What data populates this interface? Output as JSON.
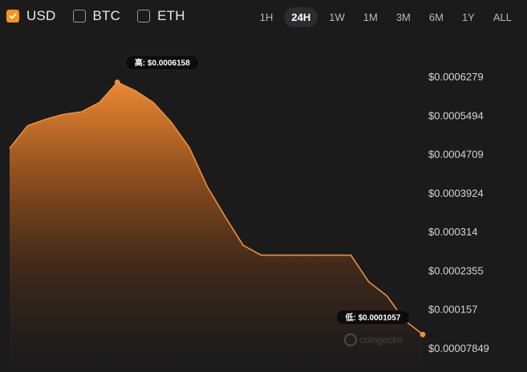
{
  "currencies": [
    {
      "label": "USD",
      "checked": true
    },
    {
      "label": "BTC",
      "checked": false
    },
    {
      "label": "ETH",
      "checked": false
    }
  ],
  "ranges": [
    {
      "label": "1H",
      "active": false
    },
    {
      "label": "24H",
      "active": true
    },
    {
      "label": "1W",
      "active": false
    },
    {
      "label": "1M",
      "active": false
    },
    {
      "label": "3M",
      "active": false
    },
    {
      "label": "6M",
      "active": false
    },
    {
      "label": "1Y",
      "active": false
    },
    {
      "label": "ALL",
      "active": false
    }
  ],
  "colors": {
    "accent": "#f7931a",
    "line": "#f0903a",
    "background": "#1b1b1c"
  },
  "chart_data": {
    "type": "area",
    "title": "",
    "xlabel": "",
    "ylabel": "",
    "grid": false,
    "y_tick_labels": [
      "$0.0006279",
      "$0.0005494",
      "$0.0004709",
      "$0.0003924",
      "$0.000314",
      "$0.0002355",
      "$0.000157",
      "$0.00007849"
    ],
    "y_ticks": [
      0.0006279,
      0.0005494,
      0.0004709,
      0.0003924,
      0.000314,
      0.0002355,
      0.000157,
      7.849e-05
    ],
    "ylim": [
      7.85e-05,
      0.0006279
    ],
    "series": [
      {
        "values": [
          0.000482,
          0.000528,
          0.000541,
          0.000551,
          0.000556,
          0.000575,
          0.0006158,
          0.000599,
          0.000575,
          0.000535,
          0.000484,
          0.000405,
          0.000344,
          0.000286,
          0.000266,
          0.000266,
          0.000266,
          0.000266,
          0.000266,
          0.000266,
          0.000212,
          0.000184,
          0.000134,
          0.0001057
        ]
      }
    ],
    "annotations": {
      "high_label": "高: $0.0006158",
      "low_label": "低: $0.0001057",
      "high_index": 6,
      "low_index": 23
    },
    "watermark": "coingecko"
  }
}
